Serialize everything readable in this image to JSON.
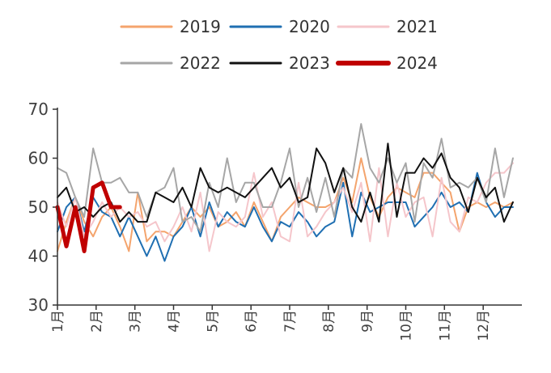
{
  "chart_data": {
    "type": "line",
    "title": "",
    "xlabel": "",
    "ylabel": "",
    "ylim": [
      30,
      70
    ],
    "yticks": [
      30,
      40,
      50,
      60,
      70
    ],
    "x_range": [
      0,
      52
    ],
    "x_tick_positions": [
      0,
      4.33,
      8.67,
      13,
      17.33,
      21.67,
      26,
      30.33,
      34.67,
      39,
      43.33,
      47.67
    ],
    "x_tick_labels": [
      "1月",
      "2月",
      "3月",
      "4月",
      "5月",
      "6月",
      "7月",
      "8月",
      "9月",
      "10月",
      "11月",
      "12月"
    ],
    "legend_position": "top",
    "grid": false,
    "series": [
      {
        "name": "2019",
        "color": "#F4A46D",
        "width": 2,
        "values": [
          41,
          47,
          52,
          47,
          44,
          48,
          50,
          46,
          41,
          53,
          43,
          45,
          45,
          44,
          47,
          50,
          48,
          50,
          46,
          47,
          49,
          46,
          51,
          47,
          43,
          48,
          50,
          52,
          51,
          50,
          50,
          51,
          56,
          51,
          60,
          52,
          48,
          52,
          54,
          53,
          52,
          57,
          57,
          55,
          53,
          45,
          50,
          51,
          50,
          51,
          50,
          51
        ]
      },
      {
        "name": "2020",
        "color": "#1F6FB2",
        "width": 2,
        "values": [
          45,
          50,
          52,
          45,
          52,
          49,
          48,
          44,
          48,
          44,
          40,
          44,
          39,
          44,
          46,
          50,
          44,
          51,
          46,
          49,
          47,
          46,
          50,
          46,
          43,
          47,
          46,
          49,
          47,
          44,
          46,
          47,
          55,
          44,
          53,
          49,
          50,
          51,
          51,
          51,
          46,
          48,
          50,
          53,
          50,
          51,
          49,
          57,
          51,
          48,
          50,
          50
        ]
      },
      {
        "name": "2021",
        "color": "#F5C6CB",
        "width": 2,
        "values": [
          51,
          46,
          52,
          44,
          47,
          51,
          48,
          50,
          48,
          49,
          46,
          47,
          43,
          46,
          50,
          45,
          53,
          41,
          49,
          47,
          46,
          48,
          57,
          48,
          51,
          44,
          43,
          55,
          44,
          46,
          49,
          51,
          54,
          49,
          55,
          43,
          58,
          44,
          55,
          48,
          51,
          52,
          44,
          56,
          47,
          45,
          52,
          51,
          55,
          57,
          57,
          59
        ]
      },
      {
        "name": "2022",
        "color": "#A6A6A6",
        "width": 2,
        "values": [
          58,
          57,
          52,
          48,
          62,
          55,
          55,
          56,
          53,
          53,
          48,
          53,
          54,
          58,
          47,
          48,
          45,
          55,
          50,
          60,
          51,
          55,
          55,
          50,
          50,
          55,
          62,
          50,
          56,
          49,
          56,
          48,
          58,
          56,
          67,
          58,
          55,
          60,
          55,
          59,
          47,
          59,
          56,
          64,
          54,
          55,
          54,
          56,
          51,
          62,
          52,
          60
        ]
      },
      {
        "name": "2023",
        "color": "#111111",
        "width": 2,
        "values": [
          52,
          54,
          49,
          50,
          48,
          50,
          51,
          47,
          49,
          47,
          47,
          53,
          52,
          51,
          54,
          50,
          58,
          54,
          53,
          54,
          53,
          52,
          54,
          56,
          58,
          54,
          56,
          51,
          52,
          62,
          59,
          53,
          58,
          50,
          47,
          53,
          47,
          63,
          48,
          57,
          57,
          60,
          58,
          61,
          56,
          54,
          49,
          56,
          52,
          54,
          47,
          51
        ]
      },
      {
        "name": "2024",
        "color": "#C00000",
        "width": 5,
        "values": [
          50,
          42,
          50,
          41,
          54,
          55,
          50,
          50
        ]
      }
    ]
  }
}
